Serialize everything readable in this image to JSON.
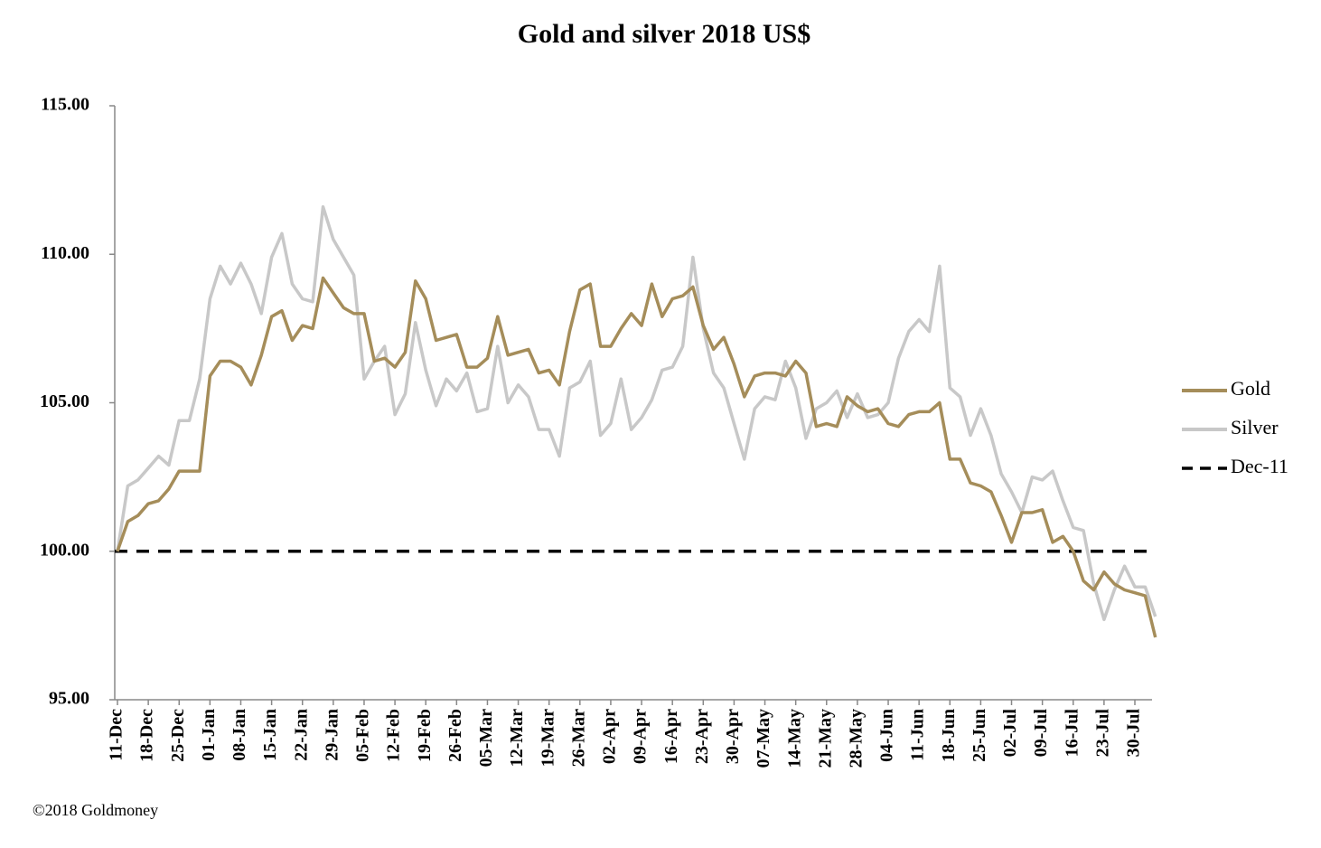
{
  "chart_data": {
    "type": "line",
    "title": "Gold and silver 2018  US$",
    "footer": "©2018 Goldmoney",
    "categories": [
      "11-Dec",
      null,
      null,
      "18-Dec",
      null,
      null,
      "25-Dec",
      null,
      null,
      "01-Jan",
      null,
      null,
      "08-Jan",
      null,
      null,
      "15-Jan",
      null,
      null,
      "22-Jan",
      null,
      null,
      "29-Jan",
      null,
      null,
      "05-Feb",
      null,
      null,
      "12-Feb",
      null,
      null,
      "19-Feb",
      null,
      null,
      "26-Feb",
      null,
      null,
      "05-Mar",
      null,
      null,
      "12-Mar",
      null,
      null,
      "19-Mar",
      null,
      null,
      "26-Mar",
      null,
      null,
      "02-Apr",
      null,
      null,
      "09-Apr",
      null,
      null,
      "16-Apr",
      null,
      null,
      "23-Apr",
      null,
      null,
      "30-Apr",
      null,
      null,
      "07-May",
      null,
      null,
      "14-May",
      null,
      null,
      "21-May",
      null,
      null,
      "28-May",
      null,
      null,
      "04-Jun",
      null,
      null,
      "11-Jun",
      null,
      null,
      "18-Jun",
      null,
      null,
      "25-Jun",
      null,
      null,
      "02-Jul",
      null,
      null,
      "09-Jul",
      null,
      null,
      "16-Jul",
      null,
      null,
      "23-Jul",
      null,
      null,
      "30-Jul",
      null,
      null
    ],
    "series": [
      {
        "name": "Gold",
        "color": "#a58d5a",
        "values": [
          100.0,
          101.0,
          101.2,
          101.6,
          101.7,
          102.1,
          102.7,
          102.7,
          102.7,
          105.9,
          106.4,
          106.4,
          106.2,
          105.6,
          106.6,
          107.9,
          108.1,
          107.1,
          107.6,
          107.5,
          109.2,
          108.7,
          108.2,
          108.0,
          108.0,
          106.4,
          106.5,
          106.2,
          106.7,
          109.1,
          108.5,
          107.1,
          107.2,
          107.3,
          106.2,
          106.2,
          106.5,
          107.9,
          106.6,
          106.7,
          106.8,
          106.0,
          106.1,
          105.6,
          107.4,
          108.8,
          109.0,
          106.9,
          106.9,
          107.5,
          108.0,
          107.6,
          109.0,
          107.9,
          108.5,
          108.6,
          108.9,
          107.6,
          106.8,
          107.2,
          106.3,
          105.2,
          105.9,
          106.0,
          106.0,
          105.9,
          106.4,
          106.0,
          104.2,
          104.3,
          104.2,
          105.2,
          104.9,
          104.7,
          104.8,
          104.3,
          104.2,
          104.6,
          104.7,
          104.7,
          105.0,
          103.1,
          103.1,
          102.3,
          102.2,
          102.0,
          101.2,
          100.3,
          101.3,
          101.3,
          101.4,
          100.3,
          100.5,
          100.0,
          99.0,
          98.7,
          99.3,
          98.9,
          98.7,
          98.6,
          98.5,
          97.1
        ]
      },
      {
        "name": "Silver",
        "color": "#c8c8c8",
        "values": [
          100.0,
          102.2,
          102.4,
          102.8,
          103.2,
          102.9,
          104.4,
          104.4,
          105.8,
          108.5,
          109.6,
          109.0,
          109.7,
          109.0,
          108.0,
          109.9,
          110.7,
          109.0,
          108.5,
          108.4,
          111.6,
          110.5,
          109.9,
          109.3,
          105.8,
          106.4,
          106.9,
          104.6,
          105.3,
          107.7,
          106.1,
          104.9,
          105.8,
          105.4,
          106.0,
          104.7,
          104.8,
          106.9,
          105.0,
          105.6,
          105.2,
          104.1,
          104.1,
          103.2,
          105.5,
          105.7,
          106.4,
          103.9,
          104.3,
          105.8,
          104.1,
          104.5,
          105.1,
          106.1,
          106.2,
          106.9,
          109.9,
          107.5,
          106.0,
          105.5,
          104.3,
          103.1,
          104.8,
          105.2,
          105.1,
          106.4,
          105.5,
          103.8,
          104.8,
          105.0,
          105.4,
          104.5,
          105.3,
          104.5,
          104.6,
          105.0,
          106.5,
          107.4,
          107.8,
          107.4,
          109.6,
          105.5,
          105.2,
          103.9,
          104.8,
          103.9,
          102.6,
          102.0,
          101.3,
          102.5,
          102.4,
          102.7,
          101.7,
          100.8,
          100.7,
          98.9,
          97.7,
          98.7,
          99.5,
          98.8,
          98.8,
          97.8
        ]
      }
    ],
    "reference_line": {
      "name": "Dec-11",
      "value": 100,
      "color": "#000000",
      "dashed": true
    },
    "ylim": [
      95,
      115
    ],
    "yticks": [
      {
        "value": 95,
        "label": "95.00"
      },
      {
        "value": 100,
        "label": "100.00"
      },
      {
        "value": 105,
        "label": "105.00"
      },
      {
        "value": 110,
        "label": "110.00"
      },
      {
        "value": 115,
        "label": "115.00"
      }
    ],
    "legend": "right"
  }
}
